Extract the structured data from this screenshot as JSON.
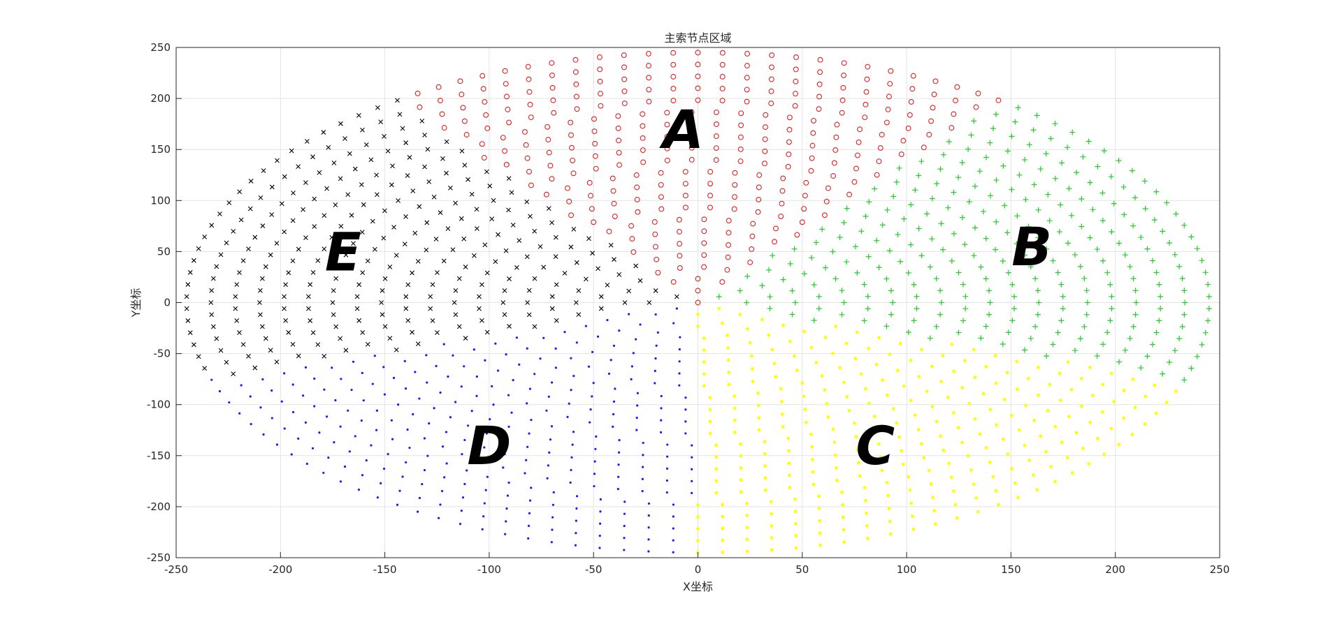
{
  "chart_data": {
    "type": "scatter",
    "title": "主索节点区域",
    "xlabel": "X坐标",
    "ylabel": "Y坐标",
    "xlim": [
      -250,
      250
    ],
    "ylim": [
      -250,
      250
    ],
    "xticks": [
      -250,
      -200,
      -150,
      -100,
      -50,
      0,
      50,
      100,
      150,
      200,
      250
    ],
    "yticks": [
      -250,
      -200,
      -150,
      -100,
      -50,
      0,
      50,
      100,
      150,
      200,
      250
    ],
    "grid": true,
    "region_labels": [
      {
        "text": "A",
        "x": -7,
        "y": 170
      },
      {
        "text": "B",
        "x": 160,
        "y": 55
      },
      {
        "text": "C",
        "x": 85,
        "y": -140
      },
      {
        "text": "D",
        "x": -100,
        "y": -140
      },
      {
        "text": "E",
        "x": -170,
        "y": 50
      }
    ],
    "series": [
      {
        "region": "A",
        "marker": "circle",
        "color": "#e02020",
        "angle_range": [
          54,
          126
        ]
      },
      {
        "region": "B",
        "marker": "plus",
        "color": "#22cc22",
        "angle_range": [
          -18,
          54
        ]
      },
      {
        "region": "C",
        "marker": "dot",
        "color": "#ffff00",
        "angle_range": [
          -90,
          -18
        ]
      },
      {
        "region": "D",
        "marker": "dot",
        "color": "#1a1aff",
        "angle_range": [
          -162,
          -90
        ]
      },
      {
        "region": "E",
        "marker": "cross",
        "color": "#000000",
        "angle_range": [
          126,
          198
        ]
      }
    ],
    "radius_max": 245
  }
}
